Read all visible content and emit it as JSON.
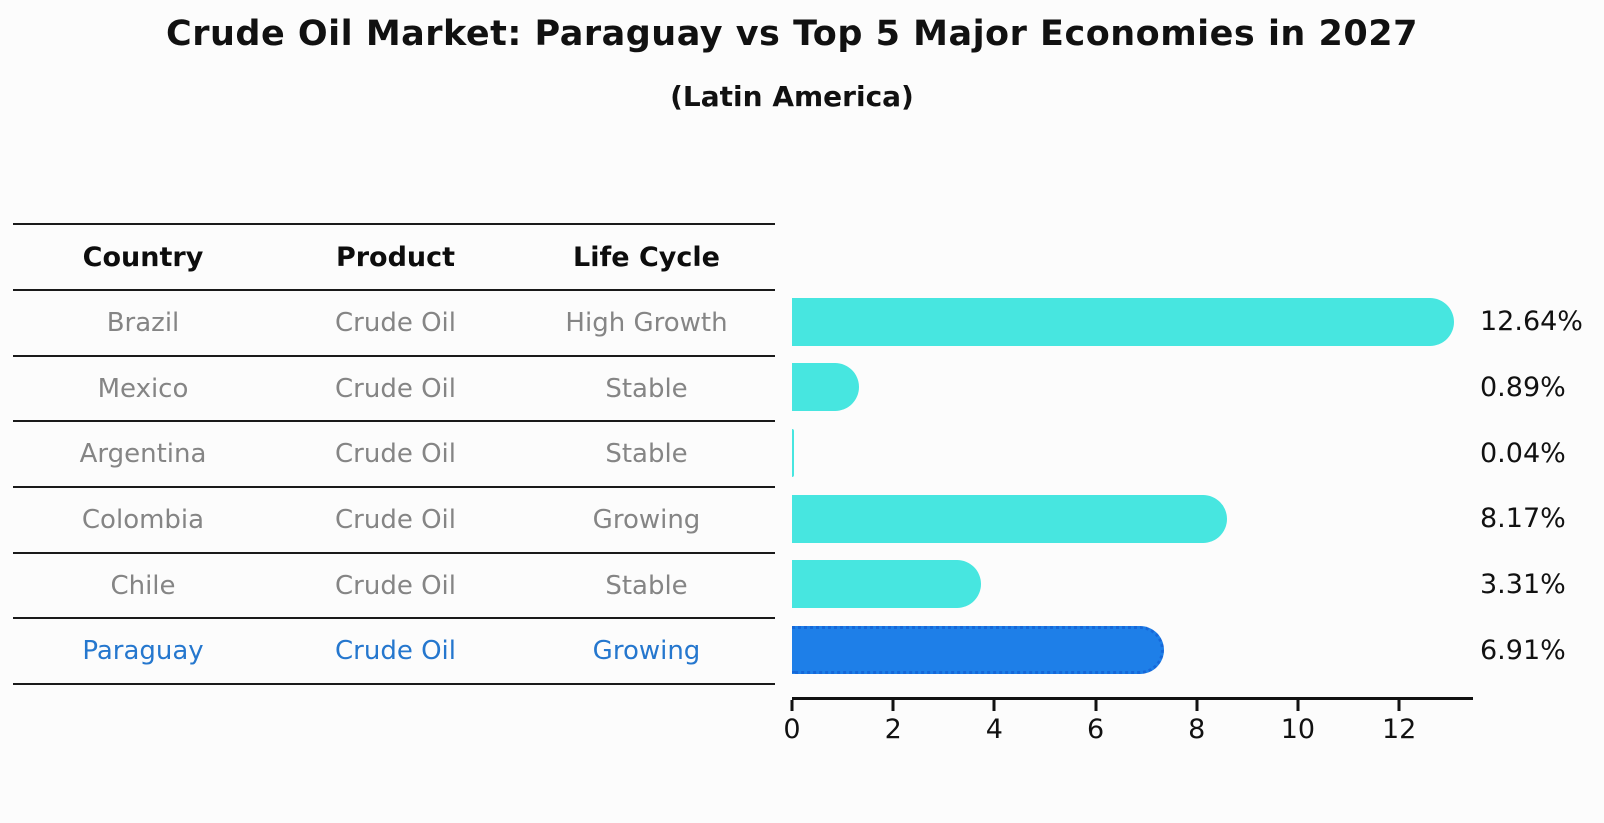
{
  "title": "Crude Oil Market: Paraguay vs Top 5 Major Economies in 2027",
  "subtitle": "(Latin America)",
  "table": {
    "headers": [
      "Country",
      "Product",
      "Life Cycle"
    ],
    "rows": [
      {
        "country": "Brazil",
        "product": "Crude Oil",
        "life_cycle": "High Growth",
        "highlight": false
      },
      {
        "country": "Mexico",
        "product": "Crude Oil",
        "life_cycle": "Stable",
        "highlight": false
      },
      {
        "country": "Argentina",
        "product": "Crude Oil",
        "life_cycle": "Stable",
        "highlight": false
      },
      {
        "country": "Colombia",
        "product": "Crude Oil",
        "life_cycle": "Growing",
        "highlight": false
      },
      {
        "country": "Chile",
        "product": "Crude Oil",
        "life_cycle": "Stable",
        "highlight": false
      },
      {
        "country": "Paraguay",
        "product": "Crude Oil",
        "life_cycle": "Growing",
        "highlight": true
      }
    ]
  },
  "chart_data": {
    "type": "bar",
    "orientation": "horizontal",
    "title": "Crude Oil Market: Paraguay vs Top 5 Major Economies in 2027",
    "subtitle": "(Latin America)",
    "categories": [
      "Brazil",
      "Mexico",
      "Argentina",
      "Colombia",
      "Chile",
      "Paraguay"
    ],
    "values": [
      12.64,
      0.89,
      0.04,
      8.17,
      3.31,
      6.91
    ],
    "value_labels": [
      "12.64%",
      "0.89%",
      "0.04%",
      "8.17%",
      "3.31%",
      "6.91%"
    ],
    "unit": "%",
    "xticks": [
      0,
      2,
      4,
      6,
      8,
      10,
      12
    ],
    "xlim": [
      0,
      13.44
    ],
    "grid": false,
    "legend": false,
    "highlight_index": 5,
    "colors": {
      "bar": "#47E6E0",
      "highlight": "#1E7FE8",
      "highlight_border": "#1668D9",
      "highlight_text": "#2577CE",
      "axis": "#111111",
      "row_text": "#858585"
    }
  }
}
